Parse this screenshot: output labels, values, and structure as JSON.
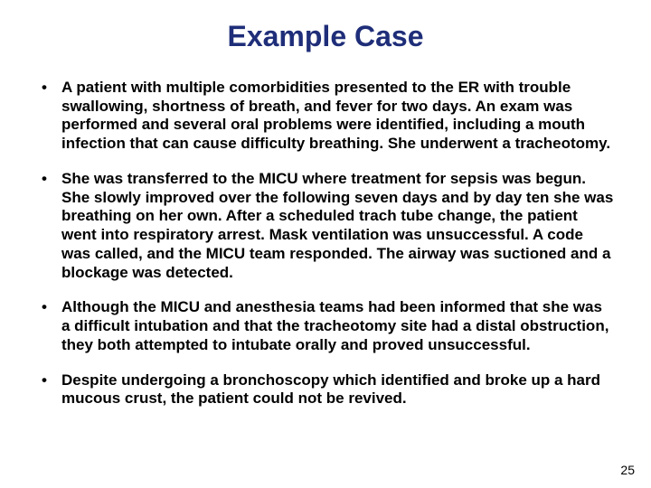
{
  "title": {
    "text": "Example Case",
    "color": "#1f2e79",
    "fontsize": 32
  },
  "body": {
    "color": "#000000",
    "fontsize": 17
  },
  "bullets": [
    "A patient with multiple comorbidities presented to the ER with trouble swallowing, shortness of breath, and fever for two days. An exam was performed and several oral problems were identified, including a mouth infection that can cause difficulty breathing. She underwent a tracheotomy.",
    "She was transferred to the MICU where treatment for sepsis was begun. She slowly improved over the following seven days and by day ten she was breathing on her own. After a scheduled trach tube change, the patient went into respiratory arrest. Mask ventilation was unsuccessful. A code was called, and the MICU team responded. The airway was suctioned and a blockage was detected.",
    "Although the MICU and anesthesia teams had been informed that she was a difficult intubation and that the tracheotomy site had a distal obstruction, they both attempted to intubate orally and proved unsuccessful.",
    "Despite undergoing a bronchoscopy which identified and broke up a hard mucous crust, the patient could not be revived."
  ],
  "pagenum": {
    "text": "25",
    "color": "#000000",
    "fontsize": 14
  },
  "background_color": "#ffffff"
}
